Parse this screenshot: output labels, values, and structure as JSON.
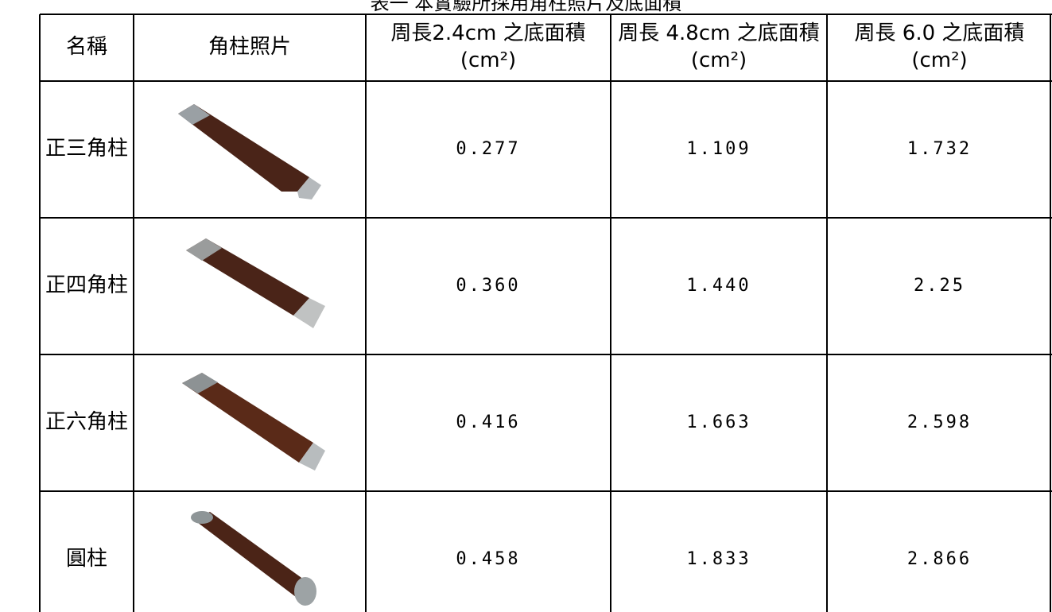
{
  "caption": "表一 本實驗所採用角柱照片及底面積",
  "table": {
    "header": [
      "名稱",
      "角柱照片",
      "周長2.4cm 之底面積(cm²)",
      "周長 4.8cm 之底面積(cm²)",
      "周長 6.0 之底面積(cm²)"
    ],
    "rows": [
      [
        "正三角柱",
        "0.277",
        "1.109",
        "1.732"
      ],
      [
        "正四角柱",
        "0.360",
        "1.440",
        "2.25"
      ],
      [
        "正六角柱",
        "0.416",
        "1.663",
        "2.598"
      ],
      [
        "圓柱",
        "0.458",
        "1.833",
        "2.866"
      ]
    ]
  }
}
